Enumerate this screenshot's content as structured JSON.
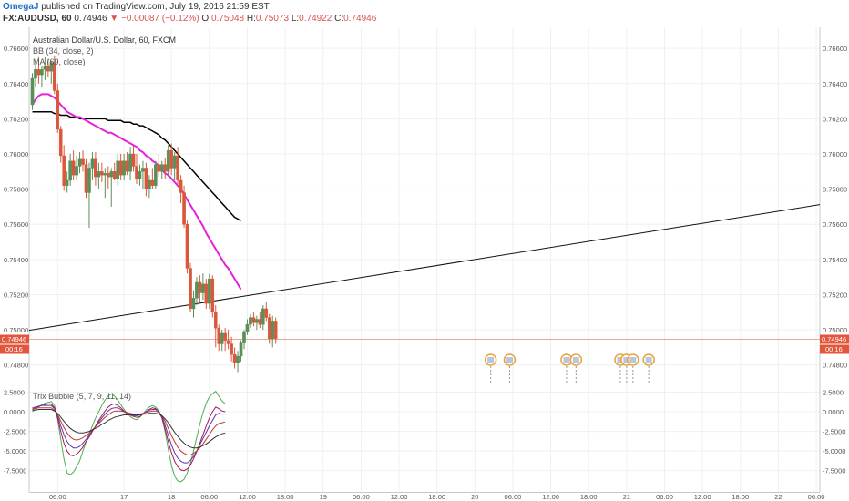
{
  "header": {
    "user": "OmegaJ",
    "published": "published on TradingView.com, July 19, 2016 21:59 EST",
    "symbol": "FX:AUDUSD, 60",
    "price": "0.74946",
    "arrow": "▼",
    "change": "−0.00087 (−0.12%)",
    "o_label": "O:",
    "o_value": "0.75048",
    "h_label": "H:",
    "h_value": "0.75073",
    "l_label": "L:",
    "l_value": "0.74922",
    "c_label": "C:",
    "c_value": "0.74946"
  },
  "legend": {
    "title": "Australian Dollar/U.S. Dollar, 60, FXCM",
    "bb": "BB (34, close, 2)",
    "ma": "MA (69, close)",
    "trix": "Trix Bubble (5, 7, 9, 11, 14)"
  },
  "price_label": "0.74946",
  "countdown_label": "00:16",
  "colors": {
    "up": "#5a8f5a",
    "down": "#d9583b",
    "ma": "#e620d8",
    "bb_basis": "#000000",
    "trendline": "#111111",
    "price_line": "#f4a58e",
    "price_tag": "#e2563b",
    "trix": [
      "#4caf50",
      "#ad1457",
      "#5e35b1",
      "#c0392b",
      "#333333"
    ]
  },
  "chart_data": [
    {
      "type": "candlestick",
      "title": "Australian Dollar/U.S. Dollar, 60, FXCM",
      "y_ticks": [
        "0.76600",
        "0.76400",
        "0.76200",
        "0.76000",
        "0.75800",
        "0.75600",
        "0.75400",
        "0.75200",
        "0.75000",
        "0.74800"
      ],
      "ylim": [
        0.747,
        0.7672
      ],
      "x_ticks": [
        "06:00",
        "17",
        "18",
        "06:00",
        "12:00",
        "18:00",
        "19",
        "06:00",
        "12:00",
        "18:00",
        "20",
        "06:00",
        "12:00",
        "18:00",
        "21",
        "06:00",
        "12:00",
        "18:00",
        "22",
        "06:00"
      ],
      "x_tick_index": [
        8,
        29,
        44,
        56,
        68,
        80,
        92,
        104,
        116,
        128,
        140,
        152,
        164,
        176,
        188,
        200,
        212,
        224,
        236,
        248
      ],
      "candles": [
        {
          "o": 0.7628,
          "h": 0.7646,
          "l": 0.7625,
          "c": 0.7643
        },
        {
          "o": 0.7643,
          "h": 0.7652,
          "l": 0.7638,
          "c": 0.7648
        },
        {
          "o": 0.7648,
          "h": 0.7655,
          "l": 0.764,
          "c": 0.7645
        },
        {
          "o": 0.7645,
          "h": 0.765,
          "l": 0.7638,
          "c": 0.7648
        },
        {
          "o": 0.7648,
          "h": 0.7655,
          "l": 0.7642,
          "c": 0.765
        },
        {
          "o": 0.765,
          "h": 0.7654,
          "l": 0.7644,
          "c": 0.7647
        },
        {
          "o": 0.7647,
          "h": 0.7653,
          "l": 0.764,
          "c": 0.7652
        },
        {
          "o": 0.7652,
          "h": 0.7656,
          "l": 0.7634,
          "c": 0.7636
        },
        {
          "o": 0.7636,
          "h": 0.764,
          "l": 0.7612,
          "c": 0.7614
        },
        {
          "o": 0.7614,
          "h": 0.7616,
          "l": 0.7595,
          "c": 0.7599
        },
        {
          "o": 0.7599,
          "h": 0.7605,
          "l": 0.7579,
          "c": 0.7582
        },
        {
          "o": 0.7582,
          "h": 0.759,
          "l": 0.7578,
          "c": 0.7585
        },
        {
          "o": 0.7585,
          "h": 0.76,
          "l": 0.7582,
          "c": 0.7596
        },
        {
          "o": 0.7596,
          "h": 0.7602,
          "l": 0.7585,
          "c": 0.7588
        },
        {
          "o": 0.7588,
          "h": 0.7599,
          "l": 0.7585,
          "c": 0.7593
        },
        {
          "o": 0.7593,
          "h": 0.7601,
          "l": 0.7589,
          "c": 0.7597
        },
        {
          "o": 0.7597,
          "h": 0.7602,
          "l": 0.759,
          "c": 0.7594
        },
        {
          "o": 0.7594,
          "h": 0.7597,
          "l": 0.7575,
          "c": 0.7578
        },
        {
          "o": 0.7578,
          "h": 0.7595,
          "l": 0.7558,
          "c": 0.7592
        },
        {
          "o": 0.7592,
          "h": 0.7601,
          "l": 0.7585,
          "c": 0.7597
        },
        {
          "o": 0.7597,
          "h": 0.7601,
          "l": 0.7582,
          "c": 0.7587
        },
        {
          "o": 0.7587,
          "h": 0.7595,
          "l": 0.758,
          "c": 0.759
        },
        {
          "o": 0.759,
          "h": 0.7595,
          "l": 0.7584,
          "c": 0.7588
        },
        {
          "o": 0.7588,
          "h": 0.7592,
          "l": 0.7575,
          "c": 0.7589
        },
        {
          "o": 0.7589,
          "h": 0.7593,
          "l": 0.758,
          "c": 0.7587
        },
        {
          "o": 0.7587,
          "h": 0.7592,
          "l": 0.757,
          "c": 0.759
        },
        {
          "o": 0.759,
          "h": 0.7595,
          "l": 0.7585,
          "c": 0.7586
        },
        {
          "o": 0.7586,
          "h": 0.76,
          "l": 0.7582,
          "c": 0.7596
        },
        {
          "o": 0.7596,
          "h": 0.76,
          "l": 0.7585,
          "c": 0.7588
        },
        {
          "o": 0.7588,
          "h": 0.76,
          "l": 0.7585,
          "c": 0.7596
        },
        {
          "o": 0.7596,
          "h": 0.7601,
          "l": 0.7588,
          "c": 0.759
        },
        {
          "o": 0.759,
          "h": 0.7604,
          "l": 0.7585,
          "c": 0.76
        },
        {
          "o": 0.76,
          "h": 0.7605,
          "l": 0.759,
          "c": 0.7593
        },
        {
          "o": 0.7593,
          "h": 0.76,
          "l": 0.7583,
          "c": 0.7586
        },
        {
          "o": 0.7586,
          "h": 0.7594,
          "l": 0.7582,
          "c": 0.759
        },
        {
          "o": 0.759,
          "h": 0.7596,
          "l": 0.758,
          "c": 0.7592
        },
        {
          "o": 0.7592,
          "h": 0.7595,
          "l": 0.7576,
          "c": 0.758
        },
        {
          "o": 0.758,
          "h": 0.7588,
          "l": 0.7575,
          "c": 0.7585
        },
        {
          "o": 0.7585,
          "h": 0.7592,
          "l": 0.758,
          "c": 0.7582
        },
        {
          "o": 0.7582,
          "h": 0.7596,
          "l": 0.758,
          "c": 0.7594
        },
        {
          "o": 0.7594,
          "h": 0.76,
          "l": 0.7587,
          "c": 0.759
        },
        {
          "o": 0.759,
          "h": 0.7596,
          "l": 0.7586,
          "c": 0.7594
        },
        {
          "o": 0.7594,
          "h": 0.7598,
          "l": 0.7586,
          "c": 0.759
        },
        {
          "o": 0.759,
          "h": 0.7605,
          "l": 0.7587,
          "c": 0.7602
        },
        {
          "o": 0.7602,
          "h": 0.7606,
          "l": 0.7588,
          "c": 0.7592
        },
        {
          "o": 0.7592,
          "h": 0.7601,
          "l": 0.7585,
          "c": 0.7599
        },
        {
          "o": 0.7599,
          "h": 0.7604,
          "l": 0.7583,
          "c": 0.7585
        },
        {
          "o": 0.7585,
          "h": 0.7588,
          "l": 0.7572,
          "c": 0.7578
        },
        {
          "o": 0.7578,
          "h": 0.7582,
          "l": 0.7558,
          "c": 0.756
        },
        {
          "o": 0.756,
          "h": 0.7562,
          "l": 0.7532,
          "c": 0.7535
        },
        {
          "o": 0.7535,
          "h": 0.7538,
          "l": 0.751,
          "c": 0.7512
        },
        {
          "o": 0.7512,
          "h": 0.7522,
          "l": 0.7507,
          "c": 0.7518
        },
        {
          "o": 0.7518,
          "h": 0.753,
          "l": 0.7514,
          "c": 0.7527
        },
        {
          "o": 0.7527,
          "h": 0.7531,
          "l": 0.7516,
          "c": 0.7521
        },
        {
          "o": 0.7521,
          "h": 0.7532,
          "l": 0.7517,
          "c": 0.7526
        },
        {
          "o": 0.7526,
          "h": 0.7529,
          "l": 0.7512,
          "c": 0.7515
        },
        {
          "o": 0.7515,
          "h": 0.7532,
          "l": 0.7512,
          "c": 0.7529
        },
        {
          "o": 0.7529,
          "h": 0.7531,
          "l": 0.7507,
          "c": 0.751
        },
        {
          "o": 0.751,
          "h": 0.7514,
          "l": 0.749,
          "c": 0.7501
        },
        {
          "o": 0.7501,
          "h": 0.7503,
          "l": 0.7488,
          "c": 0.7492
        },
        {
          "o": 0.7492,
          "h": 0.75,
          "l": 0.7488,
          "c": 0.7498
        },
        {
          "o": 0.7498,
          "h": 0.7501,
          "l": 0.7488,
          "c": 0.7494
        },
        {
          "o": 0.7494,
          "h": 0.75,
          "l": 0.7489,
          "c": 0.7492
        },
        {
          "o": 0.7492,
          "h": 0.7496,
          "l": 0.7482,
          "c": 0.7486
        },
        {
          "o": 0.7486,
          "h": 0.749,
          "l": 0.7478,
          "c": 0.7481
        },
        {
          "o": 0.7481,
          "h": 0.7488,
          "l": 0.7476,
          "c": 0.7485
        },
        {
          "o": 0.7485,
          "h": 0.7494,
          "l": 0.7482,
          "c": 0.7493
        },
        {
          "o": 0.7493,
          "h": 0.75,
          "l": 0.7489,
          "c": 0.7499
        },
        {
          "o": 0.7499,
          "h": 0.7506,
          "l": 0.7497,
          "c": 0.7503
        },
        {
          "o": 0.7503,
          "h": 0.7509,
          "l": 0.7501,
          "c": 0.7507
        },
        {
          "o": 0.7507,
          "h": 0.751,
          "l": 0.7502,
          "c": 0.7504
        },
        {
          "o": 0.7504,
          "h": 0.7508,
          "l": 0.75,
          "c": 0.7506
        },
        {
          "o": 0.7506,
          "h": 0.751,
          "l": 0.7501,
          "c": 0.7503
        },
        {
          "o": 0.7503,
          "h": 0.7514,
          "l": 0.75,
          "c": 0.7512
        },
        {
          "o": 0.7512,
          "h": 0.7516,
          "l": 0.7505,
          "c": 0.7507
        },
        {
          "o": 0.7507,
          "h": 0.7509,
          "l": 0.7492,
          "c": 0.7495
        },
        {
          "o": 0.7495,
          "h": 0.7508,
          "l": 0.749,
          "c": 0.7505
        },
        {
          "o": 0.7505,
          "h": 0.7507,
          "l": 0.7492,
          "c": 0.7495
        }
      ],
      "ma": [
        0.7628,
        0.7631,
        0.7633,
        0.7634,
        0.7634,
        0.7634,
        0.7633,
        0.7632,
        0.763,
        0.7628,
        0.7626,
        0.7624,
        0.7623,
        0.7622,
        0.7621,
        0.7621,
        0.762,
        0.7619,
        0.7618,
        0.7617,
        0.7616,
        0.7615,
        0.7614,
        0.7613,
        0.7612,
        0.7612,
        0.7611,
        0.761,
        0.7609,
        0.7608,
        0.7607,
        0.7606,
        0.7605,
        0.7604,
        0.7602,
        0.7601,
        0.7599,
        0.7598,
        0.7596,
        0.7595,
        0.7593,
        0.7591,
        0.7589,
        0.7588,
        0.7586,
        0.7584,
        0.7582,
        0.758,
        0.7577,
        0.7574,
        0.7571,
        0.7568,
        0.7565,
        0.7562,
        0.7559,
        0.7555,
        0.7552,
        0.7549,
        0.7546,
        0.7543,
        0.754,
        0.7537,
        0.7535,
        0.7532,
        0.7529,
        0.7526,
        0.7523
      ],
      "ma_start_index": 0,
      "bb_basis": [
        0.7624,
        0.7624,
        0.7624,
        0.7624,
        0.7624,
        0.7624,
        0.7624,
        0.7623,
        0.7623,
        0.7622,
        0.7622,
        0.7622,
        0.7621,
        0.7621,
        0.7621,
        0.762,
        0.762,
        0.762,
        0.762,
        0.762,
        0.762,
        0.762,
        0.762,
        0.762,
        0.7619,
        0.7619,
        0.7619,
        0.7619,
        0.7619,
        0.7618,
        0.7618,
        0.7618,
        0.7617,
        0.7617,
        0.7616,
        0.7616,
        0.7615,
        0.7614,
        0.7613,
        0.7612,
        0.7611,
        0.7609,
        0.7608,
        0.7606,
        0.7604,
        0.7602,
        0.76,
        0.7598,
        0.7596,
        0.7594,
        0.7592,
        0.759,
        0.7588,
        0.7586,
        0.7584,
        0.7582,
        0.758,
        0.7578,
        0.7576,
        0.7574,
        0.7572,
        0.757,
        0.7568,
        0.7566,
        0.7564,
        0.7563,
        0.7562
      ],
      "trendline": {
        "i1": 0,
        "p1": 0.75,
        "i2": 245,
        "p2": 0.757
      },
      "last_price": 0.74946,
      "events": [
        145,
        151,
        169,
        172,
        186,
        188,
        190,
        195
      ]
    },
    {
      "type": "line",
      "title": "Trix Bubble (5, 7, 9, 11, 14)",
      "y_ticks": [
        "2.5000",
        "0.0000",
        "-2.5000",
        "-5.0000",
        "-7.5000"
      ],
      "ylim": [
        -10.2,
        3.6
      ],
      "series": [
        {
          "values": [
            0.0,
            0.3,
            0.6,
            0.9,
            1.1,
            1.2,
            1.3,
            0.8,
            -1.0,
            -3.5,
            -6.0,
            -7.8,
            -8.0,
            -7.7,
            -7.0,
            -6.2,
            -5.0,
            -3.8,
            -2.8,
            -1.8,
            -0.8,
            0.0,
            0.8,
            1.5,
            2.0,
            2.3,
            2.0,
            1.5,
            0.9,
            0.3,
            -0.2,
            -0.6,
            -0.9,
            -1.0,
            -0.7,
            -0.3,
            0.2,
            0.6,
            0.8,
            0.6,
            0.2,
            -0.8,
            -2.5,
            -4.8,
            -6.8,
            -8.2,
            -8.8,
            -8.9,
            -8.6,
            -7.8,
            -6.6,
            -5.0,
            -3.3,
            -1.6,
            -0.1,
            1.1,
            1.9,
            2.3,
            2.6,
            2.0,
            1.4,
            1.0
          ]
        },
        {
          "values": [
            0.3,
            0.5,
            0.7,
            0.8,
            0.9,
            1.0,
            1.0,
            0.5,
            -0.8,
            -2.5,
            -4.0,
            -5.0,
            -5.5,
            -5.6,
            -5.4,
            -5.0,
            -4.5,
            -3.8,
            -3.2,
            -2.5,
            -1.8,
            -1.1,
            -0.5,
            0.1,
            0.6,
            0.9,
            1.0,
            0.8,
            0.5,
            0.1,
            -0.2,
            -0.4,
            -0.6,
            -0.7,
            -0.6,
            -0.3,
            0.0,
            0.3,
            0.5,
            0.4,
            0.0,
            -0.8,
            -2.2,
            -3.8,
            -5.2,
            -6.3,
            -7.0,
            -7.4,
            -7.5,
            -7.3,
            -6.8,
            -6.0,
            -5.1,
            -4.0,
            -2.9,
            -1.8,
            -0.8,
            0.0,
            0.6,
            0.4,
            0.1,
            0.0
          ]
        },
        {
          "values": [
            0.5,
            0.6,
            0.7,
            0.8,
            0.8,
            0.8,
            0.8,
            0.4,
            -0.5,
            -1.8,
            -2.9,
            -3.8,
            -4.3,
            -4.6,
            -4.6,
            -4.4,
            -4.0,
            -3.5,
            -3.0,
            -2.4,
            -1.9,
            -1.3,
            -0.8,
            -0.3,
            0.1,
            0.4,
            0.5,
            0.5,
            0.3,
            0.0,
            -0.2,
            -0.4,
            -0.5,
            -0.5,
            -0.4,
            -0.2,
            0.0,
            0.2,
            0.3,
            0.3,
            0.0,
            -0.6,
            -1.7,
            -3.0,
            -4.2,
            -5.2,
            -5.9,
            -6.3,
            -6.5,
            -6.5,
            -6.2,
            -5.7,
            -5.0,
            -4.2,
            -3.4,
            -2.6,
            -1.8,
            -1.1,
            -0.4,
            -0.2,
            -0.3,
            -0.3
          ]
        },
        {
          "values": [
            0.4,
            0.4,
            0.5,
            0.5,
            0.5,
            0.5,
            0.5,
            0.2,
            -0.4,
            -1.2,
            -2.0,
            -2.7,
            -3.2,
            -3.5,
            -3.6,
            -3.5,
            -3.3,
            -3.0,
            -2.7,
            -2.3,
            -1.9,
            -1.5,
            -1.1,
            -0.7,
            -0.4,
            -0.1,
            0.1,
            0.1,
            0.1,
            0.0,
            -0.1,
            -0.2,
            -0.3,
            -0.3,
            -0.3,
            -0.2,
            -0.1,
            0.0,
            0.1,
            0.1,
            -0.1,
            -0.5,
            -1.2,
            -2.1,
            -3.0,
            -3.8,
            -4.5,
            -5.0,
            -5.3,
            -5.5,
            -5.5,
            -5.3,
            -5.0,
            -4.6,
            -4.1,
            -3.5,
            -2.9,
            -2.3,
            -1.8,
            -1.5,
            -1.4,
            -1.3
          ]
        },
        {
          "values": [
            0.2,
            0.2,
            0.3,
            0.3,
            0.3,
            0.3,
            0.3,
            0.1,
            -0.2,
            -0.7,
            -1.2,
            -1.7,
            -2.1,
            -2.4,
            -2.6,
            -2.7,
            -2.7,
            -2.6,
            -2.5,
            -2.3,
            -2.1,
            -1.9,
            -1.6,
            -1.4,
            -1.1,
            -0.9,
            -0.7,
            -0.6,
            -0.5,
            -0.4,
            -0.4,
            -0.4,
            -0.4,
            -0.4,
            -0.4,
            -0.3,
            -0.3,
            -0.2,
            -0.2,
            -0.2,
            -0.3,
            -0.5,
            -0.9,
            -1.4,
            -2.0,
            -2.6,
            -3.1,
            -3.6,
            -4.0,
            -4.3,
            -4.5,
            -4.6,
            -4.6,
            -4.5,
            -4.3,
            -4.1,
            -3.8,
            -3.5,
            -3.2,
            -3.0,
            -2.8,
            -2.7
          ]
        }
      ]
    }
  ]
}
